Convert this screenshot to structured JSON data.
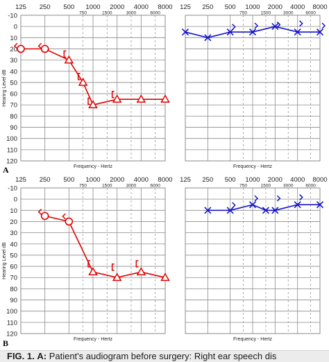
{
  "figure": {
    "panel_labels": [
      "A",
      "B"
    ],
    "caption_prefix": "FIG. 1.",
    "caption_letter": "A:",
    "caption_text": " Patient's audiogram before surgery: Right ear speech dis"
  },
  "colors": {
    "right_ear": "#e00000",
    "left_ear": "#1414c8",
    "grid": "#8a8a8a",
    "minor_grid": "#9a9a9a",
    "text": "#222222",
    "caption_bg": "#ececec"
  },
  "chart_data": [
    {
      "type": "line",
      "panel": "A",
      "ear": "right",
      "ylabel": "Hearing Level dB",
      "xlabel": "Frequency - Hertz",
      "x_ticks_major": [
        "125",
        "250",
        "500",
        "1000",
        "2000",
        "4000",
        "8000"
      ],
      "x_ticks_minor": [
        "750",
        "1500",
        "3000",
        "6000"
      ],
      "y_ticks": [
        -10,
        0,
        10,
        20,
        30,
        40,
        50,
        60,
        70,
        80,
        90,
        100,
        110,
        120
      ],
      "ylim": [
        -10,
        120
      ],
      "y_inverted": true,
      "series": [
        {
          "marker": "circle",
          "x": [
            125,
            250
          ],
          "values": [
            20,
            20
          ]
        },
        {
          "marker": "triangle",
          "x": [
            500,
            750,
            1000,
            2000,
            4000,
            8000
          ],
          "values": [
            30,
            50,
            70,
            65,
            65,
            65
          ]
        }
      ],
      "bone_conduction": [
        {
          "symbol": "<",
          "x": 125,
          "value": 18
        },
        {
          "symbol": "<",
          "x": 250,
          "value": 18
        },
        {
          "symbol": "[",
          "x": 500,
          "value": 25
        },
        {
          "symbol": "[",
          "x": 750,
          "value": 45
        },
        {
          "symbol": "[",
          "x": 1000,
          "value": 67
        },
        {
          "symbol": "[",
          "x": 2000,
          "value": 61
        }
      ]
    },
    {
      "type": "line",
      "panel": "A",
      "ear": "left",
      "xlabel": "Frequency - Hertz",
      "x_ticks_major": [
        "125",
        "250",
        "500",
        "1000",
        "2000",
        "4000",
        "8000"
      ],
      "x_ticks_minor": [
        "750",
        "1500",
        "3000",
        "6000"
      ],
      "ylim": [
        -10,
        120
      ],
      "y_inverted": true,
      "series": [
        {
          "marker": "x",
          "x": [
            125,
            250,
            500,
            1000,
            2000,
            4000,
            8000
          ],
          "values": [
            5,
            10,
            5,
            5,
            0,
            5,
            5
          ]
        }
      ],
      "bone_conduction": [
        {
          "symbol": ">",
          "x": 500,
          "value": 1
        },
        {
          "symbol": ">",
          "x": 1000,
          "value": 0
        },
        {
          "symbol": ">",
          "x": 2000,
          "value": -1
        },
        {
          "symbol": ">",
          "x": 4000,
          "value": -2
        },
        {
          "symbol": ">",
          "x": 8000,
          "value": 0
        }
      ]
    },
    {
      "type": "line",
      "panel": "B",
      "ear": "right",
      "ylabel": "Hearing Level dB",
      "xlabel": "Frequency - Hertz",
      "x_ticks_major": [
        "125",
        "250",
        "500",
        "1000",
        "2000",
        "4000",
        "8000"
      ],
      "x_ticks_minor": [
        "750",
        "1500",
        "3000",
        "6000"
      ],
      "y_ticks": [
        -10,
        0,
        10,
        20,
        30,
        40,
        50,
        60,
        70,
        80,
        90,
        100,
        110,
        120
      ],
      "ylim": [
        -10,
        120
      ],
      "y_inverted": true,
      "series": [
        {
          "marker": "circle",
          "x": [
            250,
            500
          ],
          "values": [
            15,
            20
          ]
        },
        {
          "marker": "triangle",
          "x": [
            1000,
            2000,
            4000,
            8000
          ],
          "values": [
            65,
            70,
            65,
            70
          ]
        }
      ],
      "bone_conduction": [
        {
          "symbol": "<",
          "x": 250,
          "value": 12
        },
        {
          "symbol": "<",
          "x": 500,
          "value": 16
        },
        {
          "symbol": "[",
          "x": 1000,
          "value": 58
        },
        {
          "symbol": "[",
          "x": 2000,
          "value": 61
        },
        {
          "symbol": "[",
          "x": 4000,
          "value": 58
        }
      ]
    },
    {
      "type": "line",
      "panel": "B",
      "ear": "left",
      "xlabel": "Frequency - Hertz",
      "x_ticks_major": [
        "125",
        "250",
        "500",
        "1000",
        "2000",
        "4000",
        "8000"
      ],
      "x_ticks_minor": [
        "750",
        "1500",
        "3000",
        "6000"
      ],
      "ylim": [
        -10,
        120
      ],
      "y_inverted": true,
      "series": [
        {
          "marker": "x",
          "x": [
            250,
            500,
            1000,
            1500,
            2000,
            4000,
            8000
          ],
          "values": [
            10,
            10,
            5,
            10,
            10,
            5,
            5
          ]
        }
      ],
      "bone_conduction": [
        {
          "symbol": ">",
          "x": 500,
          "value": 6
        },
        {
          "symbol": ">",
          "x": 1000,
          "value": 0
        },
        {
          "symbol": ">",
          "x": 2000,
          "value": 0
        },
        {
          "symbol": ">",
          "x": 4000,
          "value": -1
        }
      ]
    }
  ]
}
